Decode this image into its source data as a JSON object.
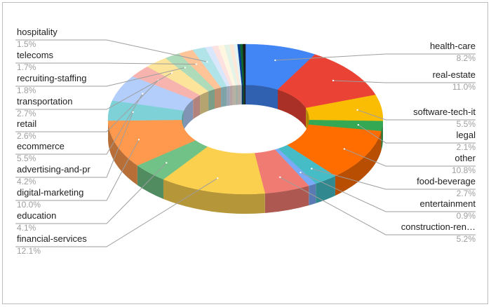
{
  "chart_data": {
    "type": "pie",
    "variant": "3d-donut",
    "title": "",
    "legend": "none",
    "slices": [
      {
        "label": "health-care",
        "value": 8.2,
        "value_label": "8.2%",
        "color": "#4285f4"
      },
      {
        "label": "real-estate",
        "value": 11.0,
        "value_label": "11.0%",
        "color": "#ea4335"
      },
      {
        "label": "software-tech-it",
        "value": 5.5,
        "value_label": "5.5%",
        "color": "#fbbc04"
      },
      {
        "label": "legal",
        "value": 2.1,
        "value_label": "2.1%",
        "color": "#34a853"
      },
      {
        "label": "other",
        "value": 10.8,
        "value_label": "10.8%",
        "color": "#ff6d01"
      },
      {
        "label": "food-beverage",
        "value": 2.7,
        "value_label": "2.7%",
        "color": "#46bdc6"
      },
      {
        "label": "entertainment",
        "value": 0.9,
        "value_label": "0.9%",
        "color": "#7baaf7"
      },
      {
        "label": "construction-ren…",
        "value": 5.2,
        "value_label": "5.2%",
        "color": "#f07b72"
      },
      {
        "label": "financial-services",
        "value": 12.1,
        "value_label": "12.1%",
        "color": "#fcd04f"
      },
      {
        "label": "education",
        "value": 4.1,
        "value_label": "4.1%",
        "color": "#71c287"
      },
      {
        "label": "digital-marketing",
        "value": 10.0,
        "value_label": "10.0%",
        "color": "#ff994d"
      },
      {
        "label": "advertising-and-pr",
        "value": 4.2,
        "value_label": "4.2%",
        "color": "#7ed1d7"
      },
      {
        "label": "ecommerce",
        "value": 5.5,
        "value_label": "5.5%",
        "color": "#b3cefb"
      },
      {
        "label": "retail",
        "value": 2.6,
        "value_label": "2.6%",
        "color": "#f7b4ae"
      },
      {
        "label": "transportation",
        "value": 2.7,
        "value_label": "2.7%",
        "color": "#fde49b"
      },
      {
        "label": "recruiting-staffing",
        "value": 1.8,
        "value_label": "1.8%",
        "color": "#aedcba"
      },
      {
        "label": "telecoms",
        "value": 1.7,
        "value_label": "1.7%",
        "color": "#ffc599"
      },
      {
        "label": "hospitality",
        "value": 1.5,
        "value_label": "1.5%",
        "color": "#b1e4e8"
      },
      {
        "value": 0.8,
        "color": "#d9e7fd"
      },
      {
        "value": 0.7,
        "color": "#fbe1df"
      },
      {
        "value": 0.7,
        "color": "#fef6e0"
      },
      {
        "value": 0.6,
        "color": "#e3f3e7"
      },
      {
        "value": 0.5,
        "color": "#ffe8d8"
      },
      {
        "value": 0.4,
        "color": "#e1f4f6"
      },
      {
        "value": 0.3,
        "color": "#0b3d91"
      },
      {
        "value": 0.3,
        "color": "#0d652d"
      },
      {
        "value": 0.3,
        "color": "#1a1a1a"
      }
    ]
  }
}
